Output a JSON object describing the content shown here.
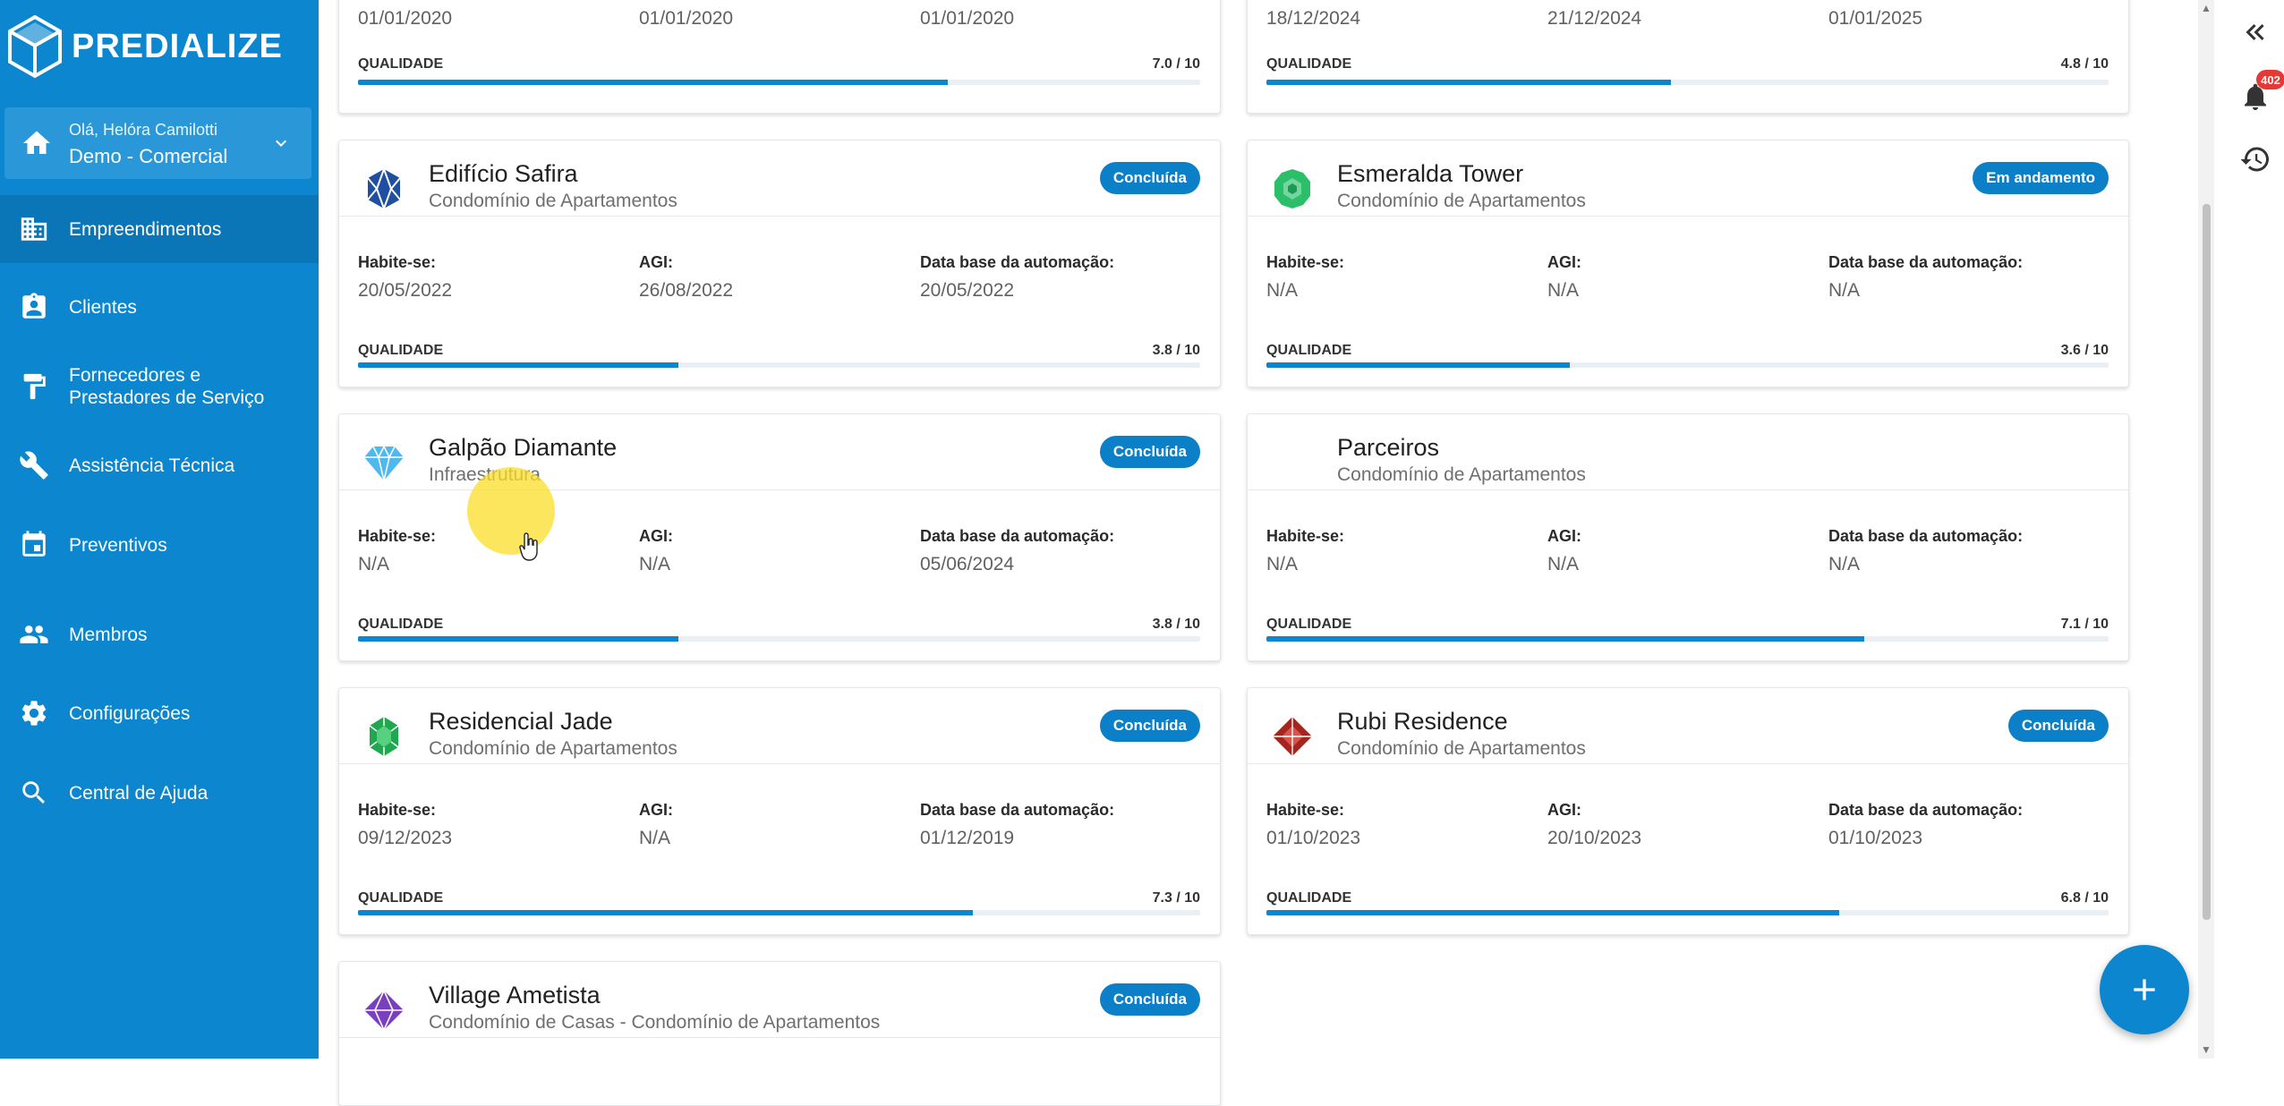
{
  "app": {
    "brand": "PREDIALIZE"
  },
  "user": {
    "greeting": "Olá, Helóra Camilotti",
    "company": "Demo - Comercial"
  },
  "nav": [
    {
      "label": "Empreendimentos",
      "icon": "building-icon",
      "active": true
    },
    {
      "label": "Clientes",
      "icon": "contact-card-icon",
      "active": false
    },
    {
      "label": "Fornecedores e Prestadores de Serviço",
      "icon": "paint-roller-icon",
      "active": false
    },
    {
      "label": "Assistência Técnica",
      "icon": "wrench-icon",
      "active": false
    },
    {
      "label": "Preventivos",
      "icon": "calendar-icon",
      "active": false
    },
    {
      "label": "Membros",
      "icon": "people-icon",
      "active": false
    },
    {
      "label": "Configurações",
      "icon": "gear-icon",
      "active": false
    },
    {
      "label": "Central de Ajuda",
      "icon": "search-icon",
      "active": false
    }
  ],
  "labels": {
    "habite": "Habite-se:",
    "agi": "AGI:",
    "data_base": "Data base da automação:",
    "qualidade": "QUALIDADE"
  },
  "top_cards": [
    {
      "habite": "01/01/2020",
      "agi": "01/01/2020",
      "data_base": "01/01/2020",
      "quality_text": "7.0 / 10",
      "quality": 7.0
    },
    {
      "habite": "18/12/2024",
      "agi": "21/12/2024",
      "data_base": "01/01/2025",
      "quality_text": "4.8 / 10",
      "quality": 4.8
    }
  ],
  "cards": [
    {
      "name": "Edifício Safira",
      "type": "Condomínio de Apartamentos",
      "status": "Concluída",
      "icon": "sapphire-gem-icon",
      "icon_color": "#1e4fa0",
      "habite": "20/05/2022",
      "agi": "26/08/2022",
      "data_base": "20/05/2022",
      "quality_text": "3.8 / 10",
      "quality": 3.8
    },
    {
      "name": "Esmeralda Tower",
      "type": "Condomínio de Apartamentos",
      "status": "Em andamento",
      "icon": "emerald-gem-icon",
      "icon_color": "#2bbf6a",
      "habite": "N/A",
      "agi": "N/A",
      "data_base": "N/A",
      "quality_text": "3.6 / 10",
      "quality": 3.6
    },
    {
      "name": "Galpão Diamante",
      "type": "Infraestrutura",
      "status": "Concluída",
      "icon": "diamond-icon",
      "icon_color": "#4fb8f0",
      "habite": "N/A",
      "agi": "N/A",
      "data_base": "05/06/2024",
      "quality_text": "3.8 / 10",
      "quality": 3.8
    },
    {
      "name": "Parceiros",
      "type": "Condomínio de Apartamentos",
      "status": "",
      "icon": "",
      "icon_color": "",
      "habite": "N/A",
      "agi": "N/A",
      "data_base": "N/A",
      "quality_text": "7.1 / 10",
      "quality": 7.1
    },
    {
      "name": "Residencial Jade",
      "type": "Condomínio de Apartamentos",
      "status": "Concluída",
      "icon": "jade-gem-icon",
      "icon_color": "#1fa84f",
      "habite": "09/12/2023",
      "agi": "N/A",
      "data_base": "01/12/2019",
      "quality_text": "7.3 / 10",
      "quality": 7.3
    },
    {
      "name": "Rubi Residence",
      "type": "Condomínio de Apartamentos",
      "status": "Concluída",
      "icon": "ruby-gem-icon",
      "icon_color": "#a4261f",
      "habite": "01/10/2023",
      "agi": "20/10/2023",
      "data_base": "01/10/2023",
      "quality_text": "6.8 / 10",
      "quality": 6.8
    },
    {
      "name": "Village Ametista",
      "type": "Condomínio de Casas - Condomínio de Apartamentos",
      "status": "Concluída",
      "icon": "amethyst-gem-icon",
      "icon_color": "#7a3fbf",
      "habite": "",
      "agi": "",
      "data_base": "",
      "quality_text": "",
      "quality": 0
    }
  ],
  "notifications": {
    "count": "402"
  },
  "colors": {
    "sidebar": "#0b86cf",
    "accent": "#0b7fc7",
    "badge_red": "#e53935"
  }
}
